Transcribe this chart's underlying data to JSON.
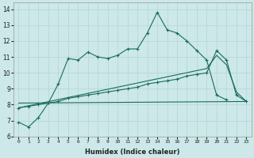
{
  "xlabel": "Humidex (Indice chaleur)",
  "bg_color": "#cce8e8",
  "grid_color": "#b8d8d8",
  "line_color": "#1a6b5a",
  "xlim": [
    -0.5,
    23.5
  ],
  "ylim": [
    6,
    14.4
  ],
  "xticks": [
    0,
    1,
    2,
    3,
    4,
    5,
    6,
    7,
    8,
    9,
    10,
    11,
    12,
    13,
    14,
    15,
    16,
    17,
    18,
    19,
    20,
    21,
    22,
    23
  ],
  "yticks": [
    6,
    7,
    8,
    9,
    10,
    11,
    12,
    13,
    14
  ],
  "series1_x": [
    0,
    1,
    2,
    3,
    4,
    5,
    6,
    7,
    8,
    9,
    10,
    11,
    12,
    13,
    14,
    15,
    16,
    17,
    18,
    19,
    20,
    21
  ],
  "series1_y": [
    6.9,
    6.6,
    7.2,
    8.1,
    9.3,
    10.9,
    10.8,
    11.3,
    11.0,
    10.9,
    11.1,
    11.5,
    11.5,
    12.5,
    13.8,
    12.7,
    12.5,
    12.0,
    11.4,
    10.8,
    8.6,
    8.3
  ],
  "series2_x": [
    0,
    1,
    2,
    3,
    4,
    5,
    6,
    7,
    8,
    9,
    10,
    11,
    12,
    13,
    14,
    15,
    16,
    17,
    18,
    19,
    20,
    21,
    22,
    23
  ],
  "series2_y": [
    7.8,
    7.9,
    8.0,
    8.1,
    8.2,
    8.4,
    8.5,
    8.6,
    8.7,
    8.8,
    8.9,
    9.0,
    9.1,
    9.3,
    9.4,
    9.5,
    9.6,
    9.8,
    9.9,
    10.0,
    11.4,
    10.8,
    8.6,
    8.2
  ],
  "series3_x": [
    0,
    23
  ],
  "series3_y": [
    8.1,
    8.2
  ],
  "series4_x": [
    0,
    1,
    2,
    3,
    4,
    5,
    6,
    7,
    8,
    9,
    10,
    11,
    12,
    13,
    14,
    15,
    16,
    17,
    18,
    19,
    20,
    21,
    22,
    23
  ],
  "series4_y": [
    7.8,
    7.93,
    8.06,
    8.19,
    8.32,
    8.45,
    8.58,
    8.71,
    8.84,
    8.97,
    9.1,
    9.23,
    9.36,
    9.49,
    9.62,
    9.75,
    9.88,
    10.01,
    10.14,
    10.27,
    11.1,
    10.5,
    8.8,
    8.2
  ]
}
